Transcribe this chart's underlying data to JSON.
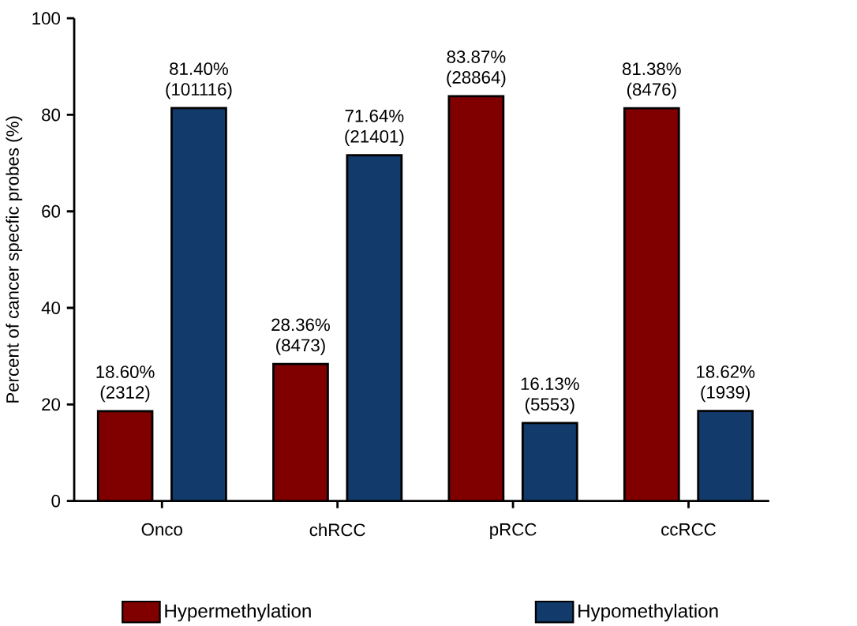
{
  "chart_data": {
    "type": "bar",
    "ylabel": "Percent of cancer specfic probes (%)",
    "categories": [
      "Onco",
      "chRCC",
      "pRCC",
      "ccRCC"
    ],
    "series": [
      {
        "name": "Hypermethylation",
        "color": "#800000",
        "values": [
          18.6,
          28.36,
          83.87,
          81.38
        ],
        "value_labels": [
          "18.60% (2312)",
          "28.36% (8473)",
          "83.87% (28864)",
          "81.38% (8476)"
        ]
      },
      {
        "name": "Hypomethylation",
        "color": "#123a6a",
        "values": [
          81.4,
          71.64,
          16.13,
          18.62
        ],
        "value_labels": [
          "81.40% (101116)",
          "71.64% (21401)",
          "16.13% (5553)",
          "18.62% (1939)"
        ]
      }
    ],
    "ylim": [
      0,
      100
    ],
    "yticks": [
      0,
      20,
      40,
      60,
      80,
      100
    ],
    "grid": false,
    "legend": "bottom"
  }
}
